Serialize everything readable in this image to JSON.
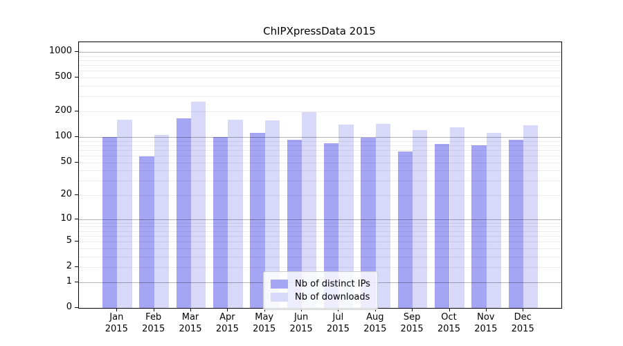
{
  "title": "ChIPXpressData 2015",
  "chart_data": {
    "type": "bar",
    "title": "ChIPXpressData 2015",
    "categories": [
      "Jan",
      "Feb",
      "Mar",
      "Apr",
      "May",
      "Jun",
      "Jul",
      "Aug",
      "Sep",
      "Oct",
      "Nov",
      "Dec"
    ],
    "x_tick_line2": "2015",
    "series": [
      {
        "name": "Nb of distinct IPs",
        "color": "#a5a5f6",
        "values": [
          100,
          59,
          167,
          100,
          112,
          93,
          84,
          98,
          67,
          82,
          80,
          93
        ]
      },
      {
        "name": "Nb of downloads",
        "color": "#d8d8f8",
        "values": [
          160,
          106,
          258,
          161,
          157,
          196,
          140,
          144,
          120,
          130,
          112,
          137
        ]
      }
    ],
    "yscale": "log10(1+x)",
    "ylim": [
      0,
      1300
    ],
    "y_tick_values": [
      1000,
      500,
      200,
      100,
      50,
      20,
      10,
      5,
      2,
      1,
      0
    ],
    "y_tick_labels": [
      "1000",
      "500",
      "200",
      "100",
      "50",
      "20",
      "10",
      "5",
      "2",
      "1",
      "0"
    ],
    "y_major_grid": [
      1,
      10,
      100,
      1000
    ],
    "y_minor_grid": [
      2,
      3,
      4,
      5,
      6,
      7,
      8,
      9,
      20,
      30,
      40,
      50,
      60,
      70,
      80,
      90,
      200,
      300,
      400,
      500,
      600,
      700,
      800,
      900
    ],
    "grid": "horizontal",
    "legend_position": "lower center",
    "colors": {
      "major_grid": "rgba(0,0,0,0.30)",
      "minor_grid": "rgba(0,0,0,0.08)",
      "frame": "#000000",
      "text": "#000000"
    }
  }
}
